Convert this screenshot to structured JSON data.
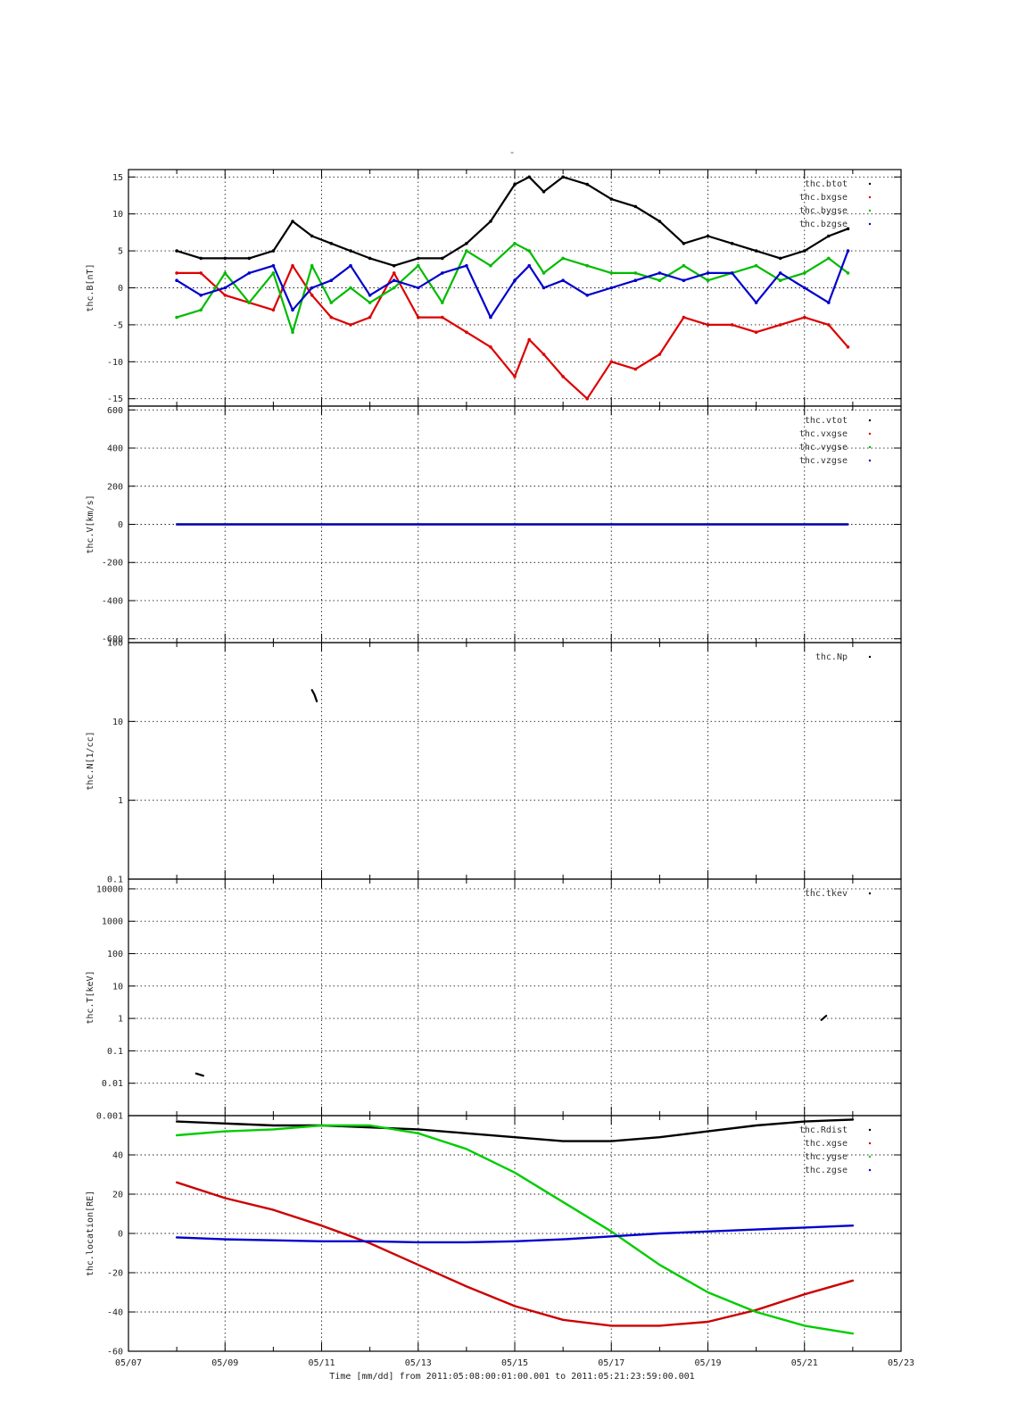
{
  "page_title": "-",
  "footer": {
    "xlabel": "Time [mm/dd]  from 2011:05:08:00:01:00.001  to  2011:05:21:23:59:00.001"
  },
  "chart_data": [
    {
      "type": "scatter",
      "ylabel": "thc.B[nT]",
      "yscale": "linear",
      "ylim": [
        -16,
        16
      ],
      "yticks": [
        -15,
        -10,
        -5,
        0,
        5,
        10,
        15
      ],
      "xlim": [
        7,
        23
      ],
      "legend_position": "top-right",
      "grid": true,
      "series": [
        {
          "name": "thc.btot",
          "color": "#000000",
          "x": [
            8.0,
            8.5,
            9.0,
            9.5,
            10.0,
            10.4,
            10.8,
            11.2,
            11.6,
            12.0,
            12.5,
            13.0,
            13.5,
            14.0,
            14.5,
            15.0,
            15.3,
            15.6,
            16.0,
            16.5,
            17.0,
            17.5,
            18.0,
            18.5,
            19.0,
            19.5,
            20.0,
            20.5,
            21.0,
            21.5,
            21.9
          ],
          "y": [
            5,
            4,
            4,
            4,
            5,
            9,
            7,
            6,
            5,
            4,
            3,
            4,
            4,
            6,
            9,
            14,
            15,
            13,
            15,
            14,
            12,
            11,
            9,
            6,
            7,
            6,
            5,
            4,
            5,
            7,
            8
          ]
        },
        {
          "name": "thc.bxgse",
          "color": "#dd0000",
          "x": [
            8.0,
            8.5,
            9.0,
            9.5,
            10.0,
            10.4,
            10.8,
            11.2,
            11.6,
            12.0,
            12.5,
            13.0,
            13.5,
            14.0,
            14.5,
            15.0,
            15.3,
            15.6,
            16.0,
            16.5,
            17.0,
            17.5,
            18.0,
            18.5,
            19.0,
            19.5,
            20.0,
            20.5,
            21.0,
            21.5,
            21.9
          ],
          "y": [
            2,
            2,
            -1,
            -2,
            -3,
            3,
            -1,
            -4,
            -5,
            -4,
            2,
            -4,
            -4,
            -6,
            -8,
            -12,
            -7,
            -9,
            -12,
            -15,
            -10,
            -11,
            -9,
            -4,
            -5,
            -5,
            -6,
            -5,
            -4,
            -5,
            -8
          ]
        },
        {
          "name": "thc.bygse",
          "color": "#00bb00",
          "x": [
            8.0,
            8.5,
            9.0,
            9.5,
            10.0,
            10.4,
            10.8,
            11.2,
            11.6,
            12.0,
            12.5,
            13.0,
            13.5,
            14.0,
            14.5,
            15.0,
            15.3,
            15.6,
            16.0,
            16.5,
            17.0,
            17.5,
            18.0,
            18.5,
            19.0,
            19.5,
            20.0,
            20.5,
            21.0,
            21.5,
            21.9
          ],
          "y": [
            -4,
            -3,
            2,
            -2,
            2,
            -6,
            3,
            -2,
            0,
            -2,
            0,
            3,
            -2,
            5,
            3,
            6,
            5,
            2,
            4,
            3,
            2,
            2,
            1,
            3,
            1,
            2,
            3,
            1,
            2,
            4,
            2
          ]
        },
        {
          "name": "thc.bzgse",
          "color": "#0000cc",
          "x": [
            8.0,
            8.5,
            9.0,
            9.5,
            10.0,
            10.4,
            10.8,
            11.2,
            11.6,
            12.0,
            12.5,
            13.0,
            13.5,
            14.0,
            14.5,
            15.0,
            15.3,
            15.6,
            16.0,
            16.5,
            17.0,
            17.5,
            18.0,
            18.5,
            19.0,
            19.5,
            20.0,
            20.5,
            21.0,
            21.5,
            21.9
          ],
          "y": [
            1,
            -1,
            0,
            2,
            3,
            -3,
            0,
            1,
            3,
            -1,
            1,
            0,
            2,
            3,
            -4,
            1,
            3,
            0,
            1,
            -1,
            0,
            1,
            2,
            1,
            2,
            2,
            -2,
            2,
            0,
            -2,
            5
          ]
        }
      ]
    },
    {
      "type": "line",
      "ylabel": "thc.V[km/s]",
      "yscale": "linear",
      "ylim": [
        -620,
        620
      ],
      "yticks": [
        -600,
        -400,
        -200,
        0,
        200,
        400,
        600
      ],
      "xlim": [
        7,
        23
      ],
      "legend_position": "top-right",
      "grid": true,
      "series": [
        {
          "name": "thc.vtot",
          "color": "#000000",
          "x": [
            8.0,
            21.9
          ],
          "y": [
            0,
            0
          ]
        },
        {
          "name": "thc.vxgse",
          "color": "#dd0000",
          "x": [
            8.0,
            21.9
          ],
          "y": [
            0,
            0
          ]
        },
        {
          "name": "thc.vygse",
          "color": "#00bb00",
          "x": [
            8.0,
            21.9
          ],
          "y": [
            0,
            0
          ]
        },
        {
          "name": "thc.vzgse",
          "color": "#0000cc",
          "x": [
            8.0,
            21.9
          ],
          "y": [
            0,
            0
          ]
        }
      ]
    },
    {
      "type": "line",
      "ylabel": "thc.N[1/cc]",
      "yscale": "log",
      "ylim": [
        0.1,
        100
      ],
      "yticks": [
        0.1,
        1,
        10,
        100
      ],
      "xlim": [
        7,
        23
      ],
      "legend_position": "top-right",
      "grid": true,
      "series": [
        {
          "name": "thc.Np",
          "color": "#000000",
          "x": [
            10.8,
            10.85,
            10.9
          ],
          "y": [
            25,
            22,
            18
          ]
        }
      ]
    },
    {
      "type": "line",
      "ylabel": "thc.T[keV]",
      "yscale": "log",
      "ylim": [
        0.001,
        20000
      ],
      "yticks": [
        0.001,
        0.01,
        0.1,
        1,
        10,
        100,
        1000,
        10000
      ],
      "ytick_labels": [
        "0.001",
        "0.01",
        "0.1",
        "1",
        "10",
        "100",
        "1000",
        "10000"
      ],
      "xlim": [
        7,
        23
      ],
      "legend_position": "top-right",
      "grid": true,
      "series": [
        {
          "name": "thc.tkev",
          "color": "#000000",
          "x": [
            8.4,
            8.55
          ],
          "y": [
            0.02,
            0.017
          ]
        },
        {
          "name": "thc.tkev",
          "color": "#000000",
          "x": [
            21.35,
            21.45
          ],
          "y": [
            0.9,
            1.2
          ]
        }
      ]
    },
    {
      "type": "line",
      "ylabel": "thc.location[RE]",
      "yscale": "linear",
      "ylim": [
        -60,
        60
      ],
      "yticks": [
        -60,
        -40,
        -20,
        0,
        20,
        40,
        60
      ],
      "ytick_labels": [
        "-60",
        "-40",
        "-20",
        "0",
        "20",
        "40",
        ""
      ],
      "xlim": [
        7,
        23
      ],
      "xticks": [
        7,
        9,
        11,
        13,
        15,
        17,
        19,
        21,
        23
      ],
      "xtick_labels": [
        "05/07",
        "05/09",
        "05/11",
        "05/13",
        "05/15",
        "05/17",
        "05/19",
        "05/21",
        "05/23"
      ],
      "legend_position": "top-right",
      "grid": true,
      "series": [
        {
          "name": "thc.Rdist",
          "color": "#000000",
          "x": [
            8,
            9,
            10,
            11,
            12,
            13,
            14,
            15,
            16,
            17,
            18,
            19,
            20,
            21,
            22
          ],
          "y": [
            57,
            56,
            55,
            55,
            54,
            53,
            51,
            49,
            47,
            47,
            49,
            52,
            55,
            57,
            58
          ]
        },
        {
          "name": "thc.xgse",
          "color": "#cc0000",
          "x": [
            8,
            9,
            10,
            11,
            12,
            13,
            14,
            15,
            16,
            17,
            18,
            19,
            20,
            21,
            22
          ],
          "y": [
            26,
            18,
            12,
            4,
            -5,
            -16,
            -27,
            -37,
            -44,
            -47,
            -47,
            -45,
            -39,
            -31,
            -24
          ]
        },
        {
          "name": "thc.ygse",
          "color": "#00cc00",
          "x": [
            8,
            9,
            10,
            11,
            12,
            13,
            14,
            15,
            16,
            17,
            18,
            19,
            20,
            21,
            22
          ],
          "y": [
            50,
            52,
            53,
            55,
            55,
            51,
            43,
            31,
            16,
            1,
            -16,
            -30,
            -40,
            -47,
            -51
          ]
        },
        {
          "name": "thc.zgse",
          "color": "#0000cc",
          "x": [
            8,
            9,
            10,
            11,
            12,
            13,
            14,
            15,
            16,
            17,
            18,
            19,
            20,
            21,
            22
          ],
          "y": [
            -2,
            -3,
            -3.5,
            -4,
            -4,
            -4.5,
            -4.5,
            -4,
            -3,
            -1.5,
            0,
            1,
            2,
            3,
            4
          ]
        }
      ]
    }
  ]
}
